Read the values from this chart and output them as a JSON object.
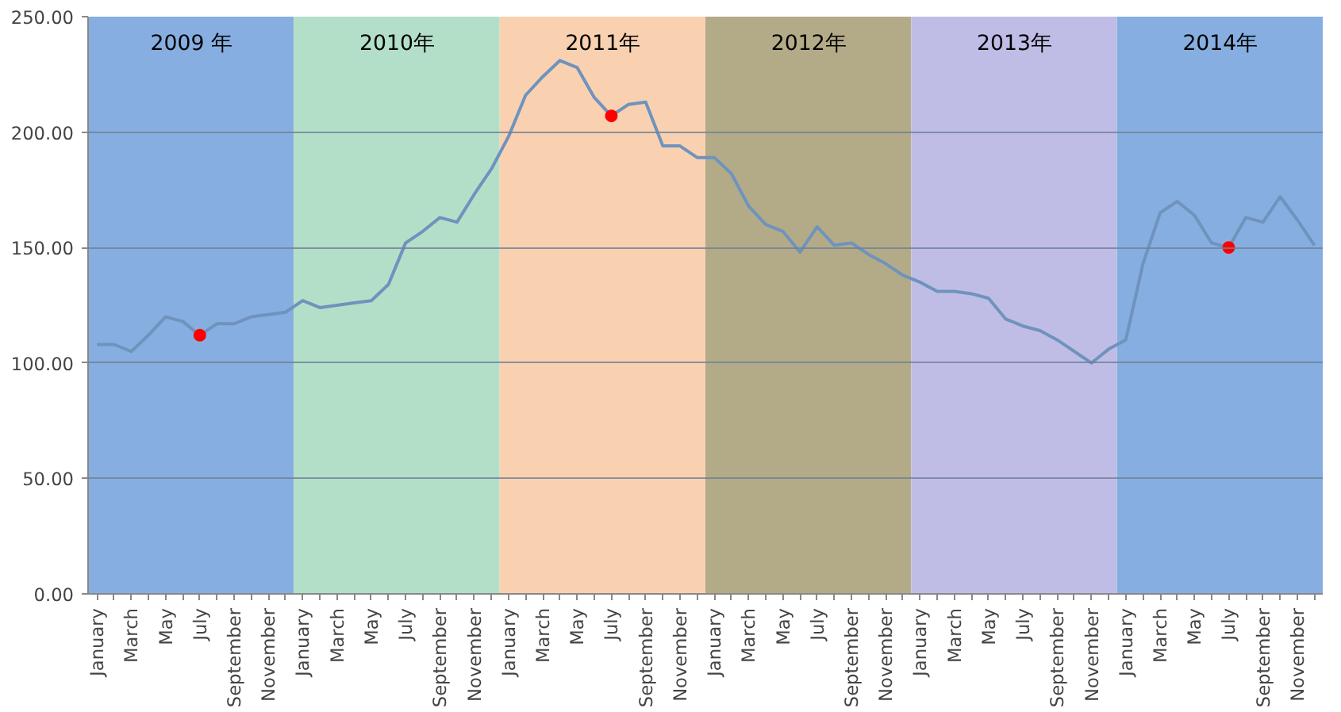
{
  "chart_data": {
    "type": "line",
    "x": [
      "2009-01",
      "2009-02",
      "2009-03",
      "2009-04",
      "2009-05",
      "2009-06",
      "2009-07",
      "2009-08",
      "2009-09",
      "2009-10",
      "2009-11",
      "2009-12",
      "2010-01",
      "2010-02",
      "2010-03",
      "2010-04",
      "2010-05",
      "2010-06",
      "2010-07",
      "2010-08",
      "2010-09",
      "2010-10",
      "2010-11",
      "2010-12",
      "2011-01",
      "2011-02",
      "2011-03",
      "2011-04",
      "2011-05",
      "2011-06",
      "2011-07",
      "2011-08",
      "2011-09",
      "2011-10",
      "2011-11",
      "2011-12",
      "2012-01",
      "2012-02",
      "2012-03",
      "2012-04",
      "2012-05",
      "2012-06",
      "2012-07",
      "2012-08",
      "2012-09",
      "2012-10",
      "2012-11",
      "2012-12",
      "2013-01",
      "2013-02",
      "2013-03",
      "2013-04",
      "2013-05",
      "2013-06",
      "2013-07",
      "2013-08",
      "2013-09",
      "2013-10",
      "2013-11",
      "2013-12",
      "2014-01",
      "2014-02",
      "2014-03",
      "2014-04",
      "2014-05",
      "2014-06",
      "2014-07",
      "2014-08",
      "2014-09",
      "2014-10",
      "2014-11",
      "2014-12"
    ],
    "series": [
      {
        "color": "#6f93bd",
        "values": [
          108,
          108,
          105,
          112,
          120,
          118,
          112,
          117,
          117,
          120,
          121,
          122,
          127,
          124,
          125,
          126,
          127,
          134,
          152,
          157,
          163,
          161,
          173,
          184,
          198,
          216,
          224,
          231,
          228,
          215,
          207,
          212,
          213,
          194,
          194,
          189,
          189,
          182,
          168,
          160,
          157,
          148,
          159,
          151,
          152,
          147,
          143,
          138,
          135,
          131,
          131,
          130,
          128,
          119,
          116,
          114,
          110,
          105,
          100,
          106,
          110,
          143,
          165,
          170,
          164,
          152,
          150,
          163,
          161,
          172,
          162,
          151
        ]
      },
      {
        "type": "scatter",
        "color": "#ff0000",
        "marker": "circle",
        "x": [
          "2009-07",
          "2011-07",
          "2014-07"
        ],
        "values": [
          112,
          207,
          150
        ]
      }
    ],
    "xlim": [
      "2008-12-16",
      "2014-12-16"
    ],
    "xticks": [
      {
        "value": "2009-01",
        "label": "January"
      },
      {
        "value": "2009-02",
        "label": null
      },
      {
        "value": "2009-03",
        "label": "March"
      },
      {
        "value": "2009-04",
        "label": null
      },
      {
        "value": "2009-05",
        "label": "May"
      },
      {
        "value": "2009-06",
        "label": null
      },
      {
        "value": "2009-07",
        "label": "July"
      },
      {
        "value": "2009-08",
        "label": null
      },
      {
        "value": "2009-09",
        "label": "September"
      },
      {
        "value": "2009-10",
        "label": null
      },
      {
        "value": "2009-11",
        "label": "November"
      },
      {
        "value": "2009-12",
        "label": null
      },
      {
        "value": "2010-01",
        "label": "January"
      },
      {
        "value": "2010-02",
        "label": null
      },
      {
        "value": "2010-03",
        "label": "March"
      },
      {
        "value": "2010-04",
        "label": null
      },
      {
        "value": "2010-05",
        "label": "May"
      },
      {
        "value": "2010-06",
        "label": null
      },
      {
        "value": "2010-07",
        "label": "July"
      },
      {
        "value": "2010-08",
        "label": null
      },
      {
        "value": "2010-09",
        "label": "September"
      },
      {
        "value": "2010-10",
        "label": null
      },
      {
        "value": "2010-11",
        "label": "November"
      },
      {
        "value": "2010-12",
        "label": null
      },
      {
        "value": "2011-01",
        "label": "January"
      },
      {
        "value": "2011-02",
        "label": null
      },
      {
        "value": "2011-03",
        "label": "March"
      },
      {
        "value": "2011-04",
        "label": null
      },
      {
        "value": "2011-05",
        "label": "May"
      },
      {
        "value": "2011-06",
        "label": null
      },
      {
        "value": "2011-07",
        "label": "July"
      },
      {
        "value": "2011-08",
        "label": null
      },
      {
        "value": "2011-09",
        "label": "September"
      },
      {
        "value": "2011-10",
        "label": null
      },
      {
        "value": "2011-11",
        "label": "November"
      },
      {
        "value": "2011-12",
        "label": null
      },
      {
        "value": "2012-01",
        "label": "January"
      },
      {
        "value": "2012-02",
        "label": null
      },
      {
        "value": "2012-03",
        "label": "March"
      },
      {
        "value": "2012-04",
        "label": null
      },
      {
        "value": "2012-05",
        "label": "May"
      },
      {
        "value": "2012-06",
        "label": null
      },
      {
        "value": "2012-07",
        "label": "July"
      },
      {
        "value": "2012-08",
        "label": null
      },
      {
        "value": "2012-09",
        "label": "September"
      },
      {
        "value": "2012-10",
        "label": null
      },
      {
        "value": "2012-11",
        "label": "November"
      },
      {
        "value": "2012-12",
        "label": null
      },
      {
        "value": "2013-01",
        "label": "January"
      },
      {
        "value": "2013-02",
        "label": null
      },
      {
        "value": "2013-03",
        "label": "March"
      },
      {
        "value": "2013-04",
        "label": null
      },
      {
        "value": "2013-05",
        "label": "May"
      },
      {
        "value": "2013-06",
        "label": null
      },
      {
        "value": "2013-07",
        "label": "July"
      },
      {
        "value": "2013-08",
        "label": null
      },
      {
        "value": "2013-09",
        "label": "September"
      },
      {
        "value": "2013-10",
        "label": null
      },
      {
        "value": "2013-11",
        "label": "November"
      },
      {
        "value": "2013-12",
        "label": null
      },
      {
        "value": "2014-01",
        "label": "January"
      },
      {
        "value": "2014-02",
        "label": null
      },
      {
        "value": "2014-03",
        "label": "March"
      },
      {
        "value": "2014-04",
        "label": null
      },
      {
        "value": "2014-05",
        "label": "May"
      },
      {
        "value": "2014-06",
        "label": null
      },
      {
        "value": "2014-07",
        "label": "July"
      },
      {
        "value": "2014-08",
        "label": null
      },
      {
        "value": "2014-09",
        "label": "September"
      },
      {
        "value": "2014-10",
        "label": null
      },
      {
        "value": "2014-11",
        "label": "November"
      },
      {
        "value": "2014-12",
        "label": null
      }
    ],
    "ylim": [
      0,
      250
    ],
    "yticks": [
      {
        "value": 0,
        "label": "0.00"
      },
      {
        "value": 50,
        "label": "50.00"
      },
      {
        "value": 100,
        "label": "100.00"
      },
      {
        "value": 150,
        "label": "150.00"
      },
      {
        "value": 200,
        "label": "200.00"
      },
      {
        "value": 250,
        "label": "250.00"
      }
    ],
    "bands": [
      {
        "axis": "x",
        "from": "2008-12-16",
        "to": "2009-12-16",
        "label": "2009 年",
        "color": "#87aee0"
      },
      {
        "axis": "x",
        "from": "2009-12-16",
        "to": "2010-12-16",
        "label": "2010年",
        "color": "#b3dfc8"
      },
      {
        "axis": "x",
        "from": "2010-12-16",
        "to": "2011-12-16",
        "label": "2011年",
        "color": "#f9d1b1"
      },
      {
        "axis": "x",
        "from": "2011-12-16",
        "to": "2012-12-16",
        "label": "2012年",
        "color": "#b3ab88"
      },
      {
        "axis": "x",
        "from": "2012-12-16",
        "to": "2013-12-16",
        "label": "2013年",
        "color": "#bfbde6"
      },
      {
        "axis": "x",
        "from": "2013-12-16",
        "to": "2014-12-16",
        "label": "2014年",
        "color": "#87aee0"
      }
    ],
    "grid": "y"
  }
}
